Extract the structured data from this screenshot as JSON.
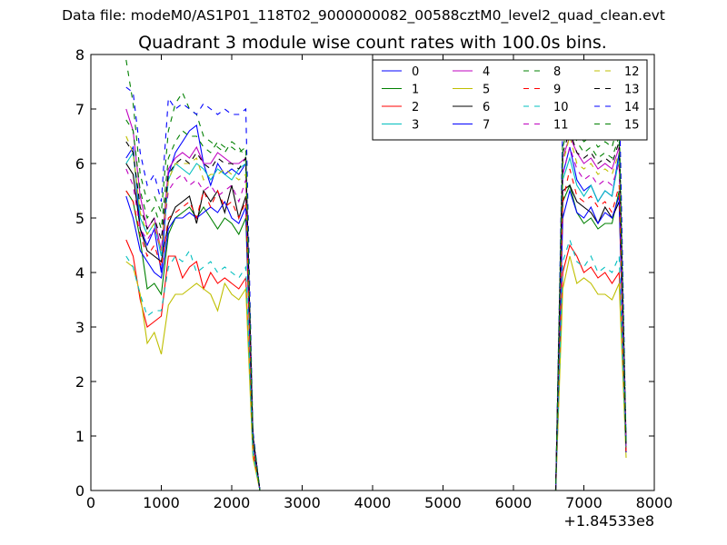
{
  "header": {
    "data_file": "Data file: modeM0/AS1P01_118T02_9000000082_00588cztM0_level2_quad_clean.evt"
  },
  "chart_data": {
    "type": "line",
    "title": "Quadrant 3 module wise count rates with 100.0s bins.",
    "xlabel": "",
    "ylabel": "",
    "x_offset_label": "+1.84533e8",
    "xlim": [
      0,
      8000
    ],
    "ylim": [
      0,
      8
    ],
    "x_ticks": [
      0,
      1000,
      2000,
      3000,
      4000,
      5000,
      6000,
      7000,
      8000
    ],
    "y_ticks": [
      0,
      1,
      2,
      3,
      4,
      5,
      6,
      7,
      8
    ],
    "grid": false,
    "legend_position": "top-right",
    "legend_columns": 4,
    "segments": [
      {
        "x": [
          500,
          600,
          700,
          800,
          900,
          1000,
          1100,
          1200,
          1300,
          1400,
          1500,
          1600,
          1700,
          1800,
          1900,
          2000,
          2100,
          2200,
          2300,
          2400
        ]
      },
      {
        "x": [
          6600,
          6700,
          6800,
          6900,
          7000,
          7100,
          7200,
          7300,
          7400,
          7500,
          7600
        ]
      }
    ],
    "gap": {
      "x": [
        2400,
        6600
      ],
      "value": 0
    },
    "series": [
      {
        "name": "0",
        "color": "#0000ff",
        "dash": "solid",
        "seg1": [
          6.1,
          6.3,
          4.8,
          4.5,
          4.8,
          4.0,
          5.8,
          6.2,
          6.4,
          6.6,
          6.7,
          6.0,
          5.6,
          6.0,
          5.8,
          5.9,
          5.8,
          6.0,
          1.0,
          0
        ],
        "seg2": [
          0,
          5.8,
          6.3,
          5.7,
          5.5,
          5.6,
          5.3,
          5.5,
          5.4,
          6.2,
          0.8
        ]
      },
      {
        "name": "1",
        "color": "#008000",
        "dash": "solid",
        "seg1": [
          5.5,
          5.3,
          4.6,
          3.7,
          3.8,
          3.6,
          4.7,
          5.0,
          5.1,
          5.2,
          5.0,
          5.2,
          5.0,
          4.8,
          5.0,
          4.9,
          4.7,
          5.0,
          0.9,
          0
        ],
        "seg2": [
          0,
          5.3,
          5.6,
          5.1,
          4.9,
          5.0,
          4.8,
          4.9,
          4.9,
          5.5,
          0.7
        ]
      },
      {
        "name": "2",
        "color": "#ff0000",
        "dash": "solid",
        "seg1": [
          4.6,
          4.3,
          3.5,
          3.0,
          3.1,
          3.2,
          4.3,
          4.3,
          3.9,
          4.1,
          4.2,
          3.7,
          4.0,
          3.8,
          3.9,
          3.8,
          3.7,
          3.9,
          0.7,
          0
        ],
        "seg2": [
          0,
          4.0,
          4.5,
          4.3,
          4.0,
          4.1,
          3.9,
          4.0,
          3.8,
          4.0,
          0.7
        ]
      },
      {
        "name": "3",
        "color": "#00bfbf",
        "dash": "solid",
        "seg1": [
          6.0,
          6.2,
          5.0,
          4.7,
          4.9,
          4.3,
          5.7,
          6.0,
          5.9,
          5.8,
          6.0,
          5.9,
          5.7,
          5.9,
          5.8,
          5.7,
          5.9,
          6.0,
          1.0,
          0
        ],
        "seg2": [
          0,
          5.7,
          6.1,
          5.6,
          5.4,
          5.6,
          5.3,
          5.5,
          5.4,
          6.1,
          0.8
        ]
      },
      {
        "name": "4",
        "color": "#bf00bf",
        "dash": "solid",
        "seg1": [
          7.0,
          6.6,
          5.4,
          4.8,
          5.0,
          4.4,
          5.9,
          6.1,
          6.2,
          6.1,
          6.3,
          6.0,
          6.0,
          6.2,
          6.1,
          6.0,
          6.0,
          6.1,
          1.0,
          0
        ],
        "seg2": [
          0,
          6.1,
          6.5,
          6.2,
          6.0,
          6.1,
          5.9,
          6.0,
          5.9,
          6.3,
          0.8
        ]
      },
      {
        "name": "5",
        "color": "#bfbf00",
        "dash": "solid",
        "seg1": [
          4.2,
          4.1,
          3.6,
          2.7,
          2.9,
          2.5,
          3.4,
          3.6,
          3.6,
          3.7,
          3.8,
          3.7,
          3.6,
          3.3,
          3.8,
          3.6,
          3.5,
          3.7,
          0.6,
          0
        ],
        "seg2": [
          0,
          3.7,
          4.3,
          3.8,
          3.9,
          3.8,
          3.6,
          3.6,
          3.5,
          3.8,
          0.6
        ]
      },
      {
        "name": "6",
        "color": "#000000",
        "dash": "solid",
        "seg1": [
          6.0,
          5.8,
          4.8,
          4.4,
          4.3,
          4.2,
          4.9,
          5.2,
          5.3,
          5.4,
          4.9,
          5.5,
          5.3,
          5.5,
          5.1,
          5.6,
          5.0,
          5.4,
          0.9,
          0
        ],
        "seg2": [
          0,
          5.5,
          5.6,
          5.3,
          5.2,
          5.1,
          4.9,
          5.2,
          5.0,
          5.3,
          0.7
        ]
      },
      {
        "name": "7",
        "color": "#0000ff",
        "dash": "solid",
        "seg1": [
          5.4,
          5.0,
          4.4,
          4.2,
          4.0,
          3.9,
          4.8,
          5.0,
          5.0,
          5.1,
          5.0,
          5.1,
          5.2,
          5.1,
          5.3,
          5.0,
          4.9,
          5.2,
          0.9,
          0
        ],
        "seg2": [
          0,
          5.0,
          5.5,
          5.1,
          5.0,
          5.2,
          4.9,
          5.1,
          5.0,
          5.4,
          0.7
        ]
      },
      {
        "name": "8",
        "color": "#008000",
        "dash": "dashed",
        "seg1": [
          7.9,
          7.1,
          5.8,
          5.3,
          5.4,
          5.1,
          6.6,
          7.1,
          7.3,
          7.0,
          6.9,
          6.5,
          6.4,
          6.3,
          6.2,
          6.4,
          6.3,
          6.1,
          1.0,
          0
        ],
        "seg2": [
          0,
          6.6,
          6.9,
          6.6,
          6.4,
          6.5,
          6.3,
          6.4,
          6.3,
          6.8,
          0.9
        ]
      },
      {
        "name": "9",
        "color": "#ff0000",
        "dash": "dashed",
        "seg1": [
          5.5,
          5.3,
          4.7,
          4.3,
          4.5,
          4.1,
          5.0,
          5.1,
          5.2,
          5.3,
          5.0,
          5.5,
          5.2,
          5.5,
          5.2,
          5.3,
          5.0,
          5.3,
          0.9,
          0
        ],
        "seg2": [
          0,
          5.3,
          5.9,
          5.4,
          5.3,
          5.4,
          5.2,
          5.3,
          5.1,
          5.6,
          0.7
        ]
      },
      {
        "name": "10",
        "color": "#00bfbf",
        "dash": "dashed",
        "seg1": [
          4.3,
          4.1,
          3.6,
          3.2,
          3.3,
          3.3,
          4.1,
          4.3,
          4.2,
          4.4,
          4.0,
          4.1,
          4.2,
          4.0,
          4.1,
          4.0,
          3.9,
          4.1,
          0.7,
          0
        ],
        "seg2": [
          0,
          4.2,
          4.6,
          4.2,
          4.1,
          4.3,
          4.0,
          4.1,
          4.0,
          4.3,
          0.7
        ]
      },
      {
        "name": "11",
        "color": "#bf00bf",
        "dash": "dashed",
        "seg1": [
          5.9,
          5.6,
          4.8,
          4.6,
          4.8,
          4.4,
          5.5,
          5.7,
          5.8,
          5.6,
          5.7,
          5.5,
          5.6,
          5.4,
          5.5,
          5.6,
          5.3,
          5.7,
          1.0,
          0
        ],
        "seg2": [
          0,
          5.8,
          6.3,
          5.9,
          5.7,
          5.8,
          5.6,
          5.7,
          5.6,
          6.0,
          0.8
        ]
      },
      {
        "name": "12",
        "color": "#bfbf00",
        "dash": "dashed",
        "seg1": [
          6.5,
          6.2,
          5.1,
          4.7,
          4.9,
          4.4,
          5.7,
          6.0,
          6.0,
          6.0,
          6.1,
          5.7,
          5.8,
          5.8,
          5.9,
          5.8,
          5.7,
          5.8,
          1.0,
          0
        ],
        "seg2": [
          0,
          6.0,
          6.5,
          6.0,
          5.9,
          6.0,
          5.8,
          5.9,
          5.8,
          6.2,
          0.8
        ]
      },
      {
        "name": "13",
        "color": "#000000",
        "dash": "dashed",
        "seg1": [
          6.4,
          6.2,
          5.2,
          4.8,
          5.0,
          4.6,
          5.8,
          6.0,
          6.1,
          6.0,
          6.2,
          6.0,
          5.9,
          6.1,
          6.0,
          6.0,
          5.9,
          6.1,
          1.0,
          0
        ],
        "seg2": [
          0,
          6.2,
          6.6,
          6.2,
          6.1,
          6.2,
          6.0,
          6.1,
          6.0,
          6.4,
          0.8
        ]
      },
      {
        "name": "14",
        "color": "#0000ff",
        "dash": "dashed",
        "seg1": [
          7.4,
          7.3,
          6.2,
          5.6,
          5.8,
          5.3,
          7.2,
          7.0,
          7.1,
          7.0,
          6.9,
          7.1,
          7.0,
          6.9,
          7.0,
          6.9,
          6.9,
          7.0,
          1.1,
          0
        ],
        "seg2": [
          0,
          6.8,
          7.9,
          7.1,
          7.0,
          7.1,
          6.9,
          7.0,
          6.9,
          7.4,
          0.9
        ]
      },
      {
        "name": "15",
        "color": "#008000",
        "dash": "dashed",
        "seg1": [
          6.8,
          6.6,
          5.5,
          5.0,
          5.2,
          4.8,
          6.1,
          6.4,
          6.6,
          6.5,
          6.5,
          6.3,
          6.2,
          6.4,
          6.3,
          6.3,
          6.2,
          6.3,
          1.0,
          0
        ],
        "seg2": [
          0,
          6.3,
          6.8,
          6.4,
          6.2,
          6.3,
          6.1,
          6.2,
          6.1,
          6.5,
          0.8
        ]
      }
    ]
  }
}
